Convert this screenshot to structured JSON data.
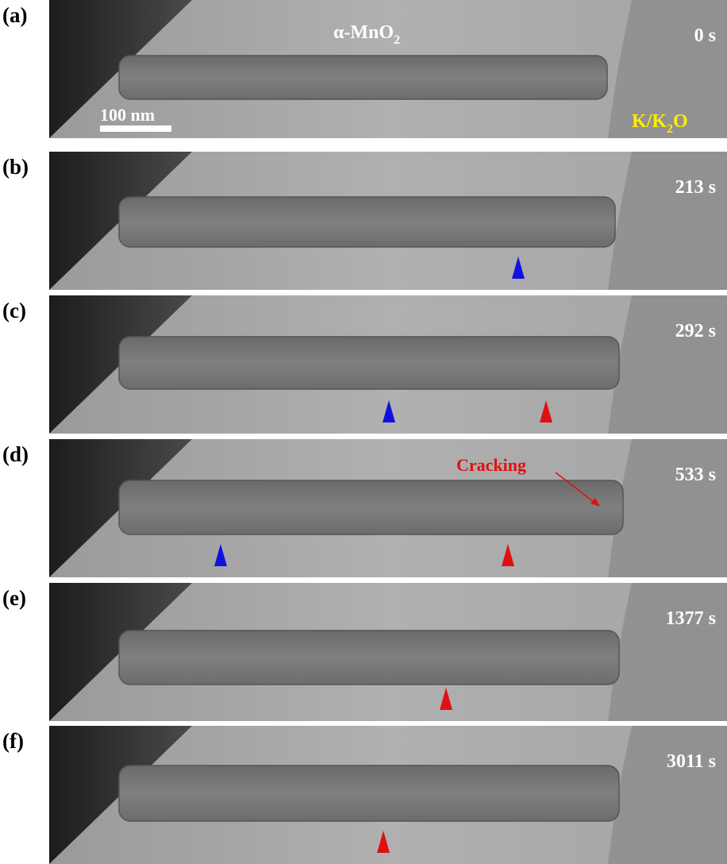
{
  "panels": [
    {
      "label": "(a)",
      "time": "0 s"
    },
    {
      "label": "(b)",
      "time": "213 s"
    },
    {
      "label": "(c)",
      "time": "292 s"
    },
    {
      "label": "(d)",
      "time": "533 s"
    },
    {
      "label": "(e)",
      "time": "1377 s"
    },
    {
      "label": "(f)",
      "time": "3011 s"
    }
  ],
  "material": {
    "text": "α-MnO",
    "subscript": "2"
  },
  "scale_bar": "100 nm",
  "electrode": {
    "text": "K/K",
    "subscript": "2",
    "suffix": "O"
  },
  "annotation": "Cracking"
}
